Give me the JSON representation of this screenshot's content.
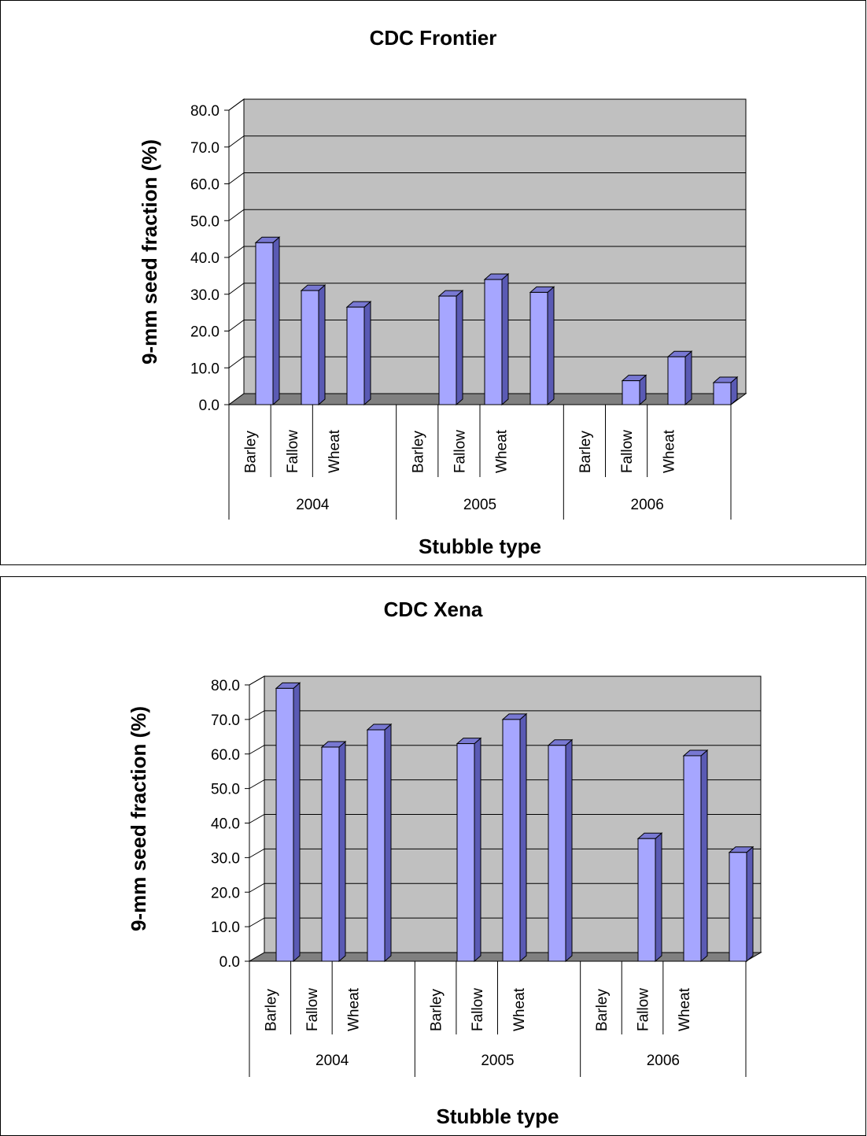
{
  "chart_data": [
    {
      "type": "bar",
      "title": "CDC Frontier",
      "ylabel": "9-mm seed fraction (%)",
      "xlabel": "Stubble type",
      "ylim": [
        0,
        80
      ],
      "yticks": [
        "0.0",
        "10.0",
        "20.0",
        "30.0",
        "40.0",
        "50.0",
        "60.0",
        "70.0",
        "80.0"
      ],
      "groups": [
        {
          "label": "2004",
          "categories": [
            "Barley",
            "Fallow",
            "Wheat"
          ],
          "values": [
            44.0,
            31.0,
            26.5
          ]
        },
        {
          "label": "2005",
          "categories": [
            "Barley",
            "Fallow",
            "Wheat"
          ],
          "values": [
            29.5,
            34.0,
            30.5
          ]
        },
        {
          "label": "2006",
          "categories": [
            "Barley",
            "Fallow",
            "Wheat"
          ],
          "values": [
            6.5,
            13.0,
            6.0
          ]
        }
      ],
      "grid": true,
      "bar_color": "#a6a6ff",
      "wall_color": "#c0c0c0",
      "floor_color": "#808080"
    },
    {
      "type": "bar",
      "title": "CDC Xena",
      "ylabel": "9-mm seed fraction (%)",
      "xlabel": "Stubble type",
      "ylim": [
        0,
        80
      ],
      "yticks": [
        "0.0",
        "10.0",
        "20.0",
        "30.0",
        "40.0",
        "50.0",
        "60.0",
        "70.0",
        "80.0"
      ],
      "groups": [
        {
          "label": "2004",
          "categories": [
            "Barley",
            "Fallow",
            "Wheat"
          ],
          "values": [
            79.0,
            62.0,
            67.0
          ]
        },
        {
          "label": "2005",
          "categories": [
            "Barley",
            "Fallow",
            "Wheat"
          ],
          "values": [
            63.0,
            70.0,
            62.5
          ]
        },
        {
          "label": "2006",
          "categories": [
            "Barley",
            "Fallow",
            "Wheat"
          ],
          "values": [
            35.5,
            59.5,
            31.5
          ]
        }
      ],
      "grid": true,
      "bar_color": "#a6a6ff",
      "wall_color": "#c0c0c0",
      "floor_color": "#808080"
    }
  ]
}
